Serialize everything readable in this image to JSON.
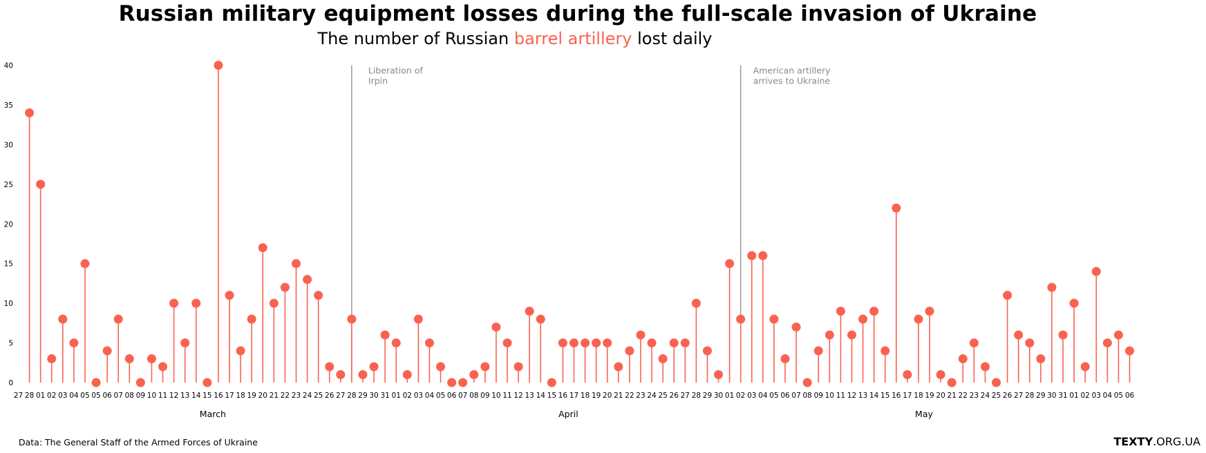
{
  "title": "Russian military equipment losses during the full-scale invasion of Ukraine",
  "subtitle": {
    "before": "The number of Russian ",
    "highlight": "barrel artillery",
    "after": " lost daily"
  },
  "source": "Data: The General Staff of the Armed Forces of Ukraine",
  "brand": {
    "bold": "TEXTY",
    "rest": ".ORG.UA"
  },
  "colors": {
    "accent": "#fa6250",
    "annotation": "#888888",
    "text": "#000000"
  },
  "chart_data": {
    "type": "lollipop",
    "title": "The number of Russian barrel artillery lost daily",
    "ylim": [
      0,
      40
    ],
    "yticks": [
      0,
      5,
      10,
      15,
      20,
      25,
      30,
      35,
      40
    ],
    "grid": false,
    "x_ticks": [
      "27",
      "28",
      "01",
      "02",
      "03",
      "04",
      "05",
      "05",
      "06",
      "07",
      "08",
      "09",
      "10",
      "11",
      "12",
      "13",
      "14",
      "15",
      "16",
      "17",
      "18",
      "19",
      "20",
      "21",
      "22",
      "23",
      "24",
      "25",
      "26",
      "27",
      "28",
      "29",
      "30",
      "31",
      "01",
      "02",
      "03",
      "04",
      "05",
      "06",
      "07",
      "08",
      "09",
      "10",
      "11",
      "12",
      "13",
      "14",
      "15",
      "16",
      "17",
      "18",
      "19",
      "20",
      "21",
      "22",
      "23",
      "24",
      "25",
      "26",
      "27",
      "28",
      "29",
      "30",
      "01",
      "02",
      "03",
      "04",
      "05",
      "06",
      "07",
      "08",
      "09",
      "10",
      "11",
      "12",
      "13",
      "14",
      "15",
      "16",
      "17",
      "18",
      "19",
      "20",
      "21",
      "22",
      "23",
      "24",
      "25",
      "26",
      "27",
      "28",
      "29",
      "30",
      "31",
      "01",
      "02",
      "03",
      "04",
      "05",
      "06"
    ],
    "first_point_tick_index": 1,
    "values": [
      34,
      25,
      3,
      8,
      5,
      15,
      0,
      4,
      8,
      3,
      0,
      3,
      2,
      10,
      5,
      10,
      0,
      40,
      11,
      4,
      8,
      17,
      10,
      12,
      15,
      13,
      11,
      2,
      1,
      8,
      1,
      2,
      6,
      5,
      1,
      8,
      5,
      2,
      0,
      0,
      1,
      2,
      7,
      5,
      2,
      9,
      8,
      0,
      5,
      5,
      5,
      5,
      5,
      2,
      4,
      6,
      5,
      3,
      5,
      5,
      10,
      4,
      1,
      15,
      8,
      16,
      16,
      8,
      3,
      7,
      0,
      4,
      6,
      9,
      6,
      8,
      9,
      4,
      22,
      1,
      8,
      9,
      1,
      0,
      3,
      5,
      2,
      0,
      11,
      6,
      5,
      3,
      12,
      6,
      10,
      2,
      14,
      5,
      6,
      4
    ],
    "month_labels": [
      {
        "label": "March",
        "tick_index": 17
      },
      {
        "label": "April",
        "tick_index": 49
      },
      {
        "label": "May",
        "tick_index": 81
      }
    ],
    "annotations": [
      {
        "tick_index": 30,
        "lines": [
          "Liberation of",
          "Irpin"
        ]
      },
      {
        "tick_index": 65,
        "lines": [
          "American artillery",
          "arrives to Ukraine"
        ]
      }
    ]
  }
}
